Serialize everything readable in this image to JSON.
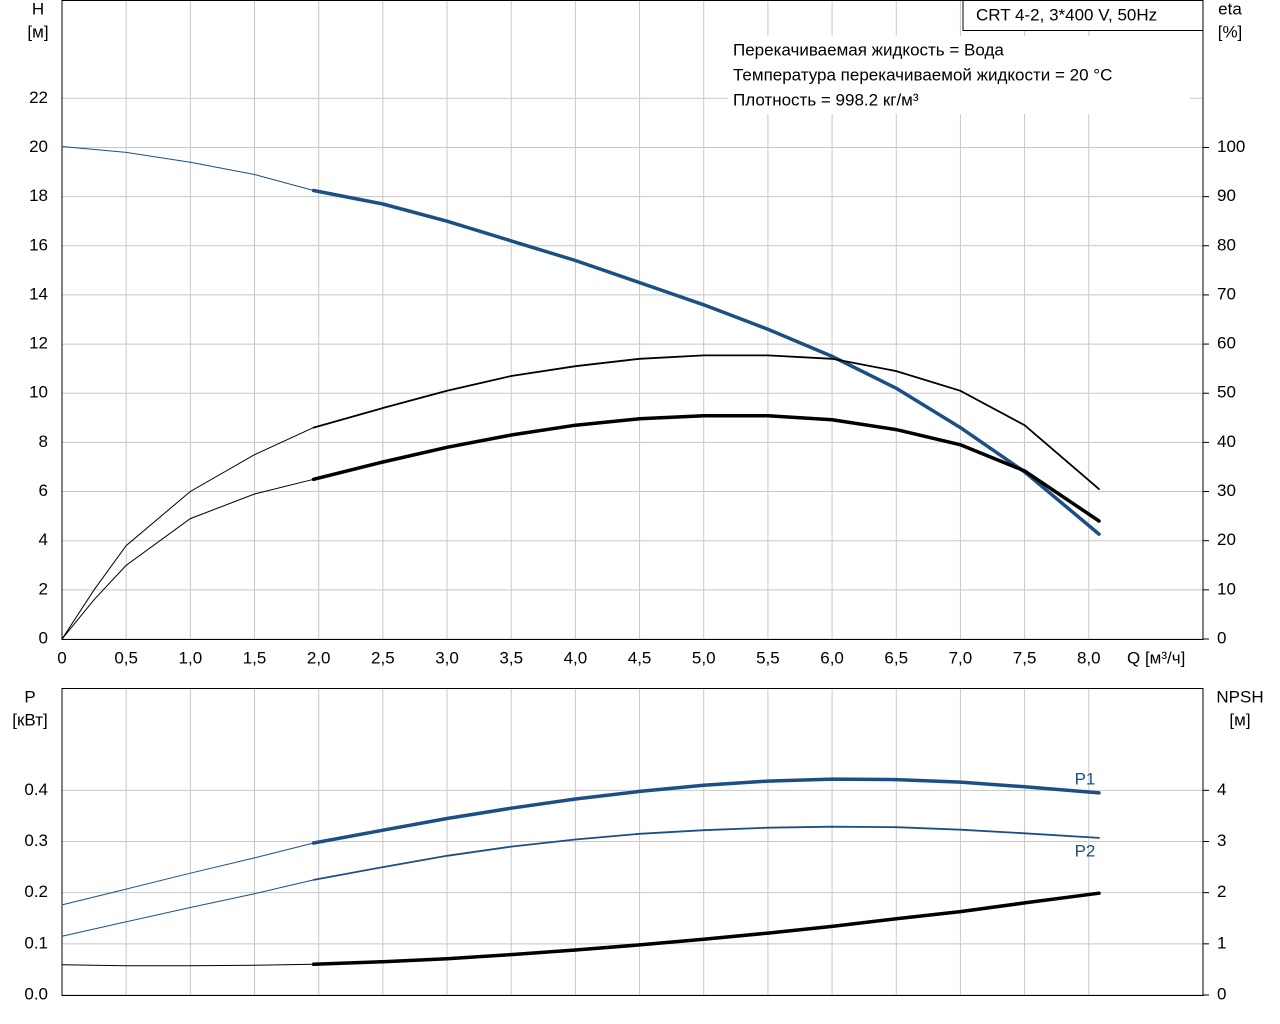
{
  "chart_data": [
    {
      "type": "line",
      "title": "CRT 4-2, 3*400 V, 50Hz",
      "info": [
        "Перекачиваемая жидкость = Вода",
        "Температура перекачиваемой жидкости = 20 °C",
        "Плотность = 998.2 кг/м³"
      ],
      "y_label": "H",
      "y_unit": "[м]",
      "y2_label": "eta",
      "y2_unit": "[%]",
      "x_label": "Q [м³/ч]",
      "grid": true,
      "xlim": [
        0,
        8.89
      ],
      "xticks": [
        0,
        {
          "value": 0.5,
          "label": "0,5"
        },
        {
          "value": 1,
          "label": "1,0"
        },
        {
          "value": 1.5,
          "label": "1,5"
        },
        {
          "value": 2,
          "label": "2,0"
        },
        {
          "value": 2.5,
          "label": "2,5"
        },
        {
          "value": 3,
          "label": "3,0"
        },
        {
          "value": 3.5,
          "label": "3,5"
        },
        {
          "value": 4,
          "label": "4,0"
        },
        {
          "value": 4.5,
          "label": "4,5"
        },
        {
          "value": 5,
          "label": "5,0"
        },
        {
          "value": 5.5,
          "label": "5,5"
        },
        {
          "value": 6,
          "label": "6,0"
        },
        {
          "value": 6.5,
          "label": "6,5"
        },
        {
          "value": 7,
          "label": "7,0"
        },
        {
          "value": 7.5,
          "label": "7,5"
        },
        {
          "value": 8,
          "label": "8,0"
        }
      ],
      "ylim": [
        0,
        26
      ],
      "yticks": [
        0,
        2,
        4,
        6,
        8,
        10,
        12,
        14,
        16,
        18,
        20,
        22
      ],
      "y2lim": [
        0,
        130
      ],
      "y2ticks": [
        0,
        10,
        20,
        30,
        40,
        50,
        60,
        70,
        80,
        90,
        100
      ],
      "series": [
        {
          "color": "#1c5085",
          "line_width": 1,
          "x": [
            0,
            0.5,
            1,
            1.5,
            1.96
          ],
          "values": [
            20.04,
            19.8,
            19.4,
            18.9,
            18.25
          ]
        },
        {
          "color": "#1c5085",
          "line_width": 3.5,
          "x": [
            1.96,
            2.5,
            3,
            3.5,
            4,
            4.5,
            5,
            5.5,
            6,
            6.5,
            7,
            7.5,
            8.08
          ],
          "values": [
            18.25,
            17.7,
            17.0,
            16.2,
            15.4,
            14.5,
            13.6,
            12.6,
            11.5,
            10.2,
            8.6,
            6.8,
            4.27
          ]
        },
        {
          "color": "#000000",
          "line_width": 1,
          "axis": "y2",
          "x": [
            0,
            0.25,
            0.5,
            1,
            1.5,
            1.96
          ],
          "values": [
            0,
            10,
            19,
            30,
            37.5,
            43
          ]
        },
        {
          "color": "#000000",
          "line_width": 1.8,
          "axis": "y2",
          "x": [
            1.96,
            2.5,
            3,
            3.5,
            4,
            4.5,
            5,
            5.5,
            6,
            6.5,
            7,
            7.5,
            8.08
          ],
          "values": [
            43,
            47,
            50.5,
            53.5,
            55.5,
            57,
            57.7,
            57.7,
            57,
            54.5,
            50.5,
            43.5,
            30.5
          ]
        },
        {
          "color": "#000000",
          "line_width": 1,
          "axis": "y2",
          "x": [
            0,
            0.25,
            0.5,
            1,
            1.5,
            1.96
          ],
          "values": [
            0,
            8,
            15,
            24.5,
            29.5,
            32.5
          ]
        },
        {
          "color": "#000000",
          "line_width": 3.5,
          "axis": "y2",
          "x": [
            1.96,
            2.5,
            3,
            3.5,
            4,
            4.5,
            5,
            5.5,
            6,
            6.5,
            7,
            7.5,
            8.08
          ],
          "values": [
            32.5,
            36,
            39,
            41.5,
            43.5,
            44.8,
            45.4,
            45.4,
            44.6,
            42.6,
            39.5,
            34.2,
            24
          ]
        }
      ]
    },
    {
      "type": "line",
      "y_label": "P",
      "y_unit": "[кВт]",
      "y2_label": "NPSH",
      "y2_unit": "[м]",
      "grid": true,
      "xlim": [
        0,
        8.89
      ],
      "ylim": [
        0,
        0.6
      ],
      "yticks": [
        {
          "value": 0,
          "label": "0.0"
        },
        0.1,
        0.2,
        0.3,
        0.4
      ],
      "y2lim": [
        0,
        6
      ],
      "y2ticks": [
        0,
        1,
        2,
        3,
        4
      ],
      "annotations": [
        "P1",
        "P2"
      ],
      "series": [
        {
          "color": "#1c5085",
          "line_width": 1,
          "x": [
            0,
            0.5,
            1,
            1.5,
            1.96
          ],
          "values": [
            0.176,
            0.207,
            0.238,
            0.268,
            0.297
          ]
        },
        {
          "color": "#1c5085",
          "line_width": 3.5,
          "x": [
            1.96,
            2.5,
            3,
            3.5,
            4,
            4.5,
            5,
            5.5,
            6,
            6.5,
            7,
            7.5,
            8.08
          ],
          "values": [
            0.297,
            0.322,
            0.345,
            0.365,
            0.383,
            0.398,
            0.41,
            0.418,
            0.422,
            0.421,
            0.416,
            0.407,
            0.395
          ]
        },
        {
          "color": "#1c5085",
          "line_width": 1,
          "x": [
            0,
            0.5,
            1,
            1.5,
            1.96
          ],
          "values": [
            0.115,
            0.143,
            0.171,
            0.198,
            0.225
          ]
        },
        {
          "color": "#1c5085",
          "line_width": 1.8,
          "x": [
            1.96,
            2.5,
            3,
            3.5,
            4,
            4.5,
            5,
            5.5,
            6,
            6.5,
            7,
            7.5,
            8.08
          ],
          "values": [
            0.225,
            0.25,
            0.272,
            0.29,
            0.304,
            0.315,
            0.322,
            0.327,
            0.329,
            0.328,
            0.323,
            0.316,
            0.307
          ]
        },
        {
          "color": "#000000",
          "line_width": 1,
          "axis": "y2",
          "x": [
            0,
            0.5,
            1,
            1.5,
            1.96
          ],
          "values": [
            0.59,
            0.57,
            0.57,
            0.58,
            0.6
          ]
        },
        {
          "color": "#000000",
          "line_width": 3.5,
          "axis": "y2",
          "x": [
            1.96,
            2.5,
            3,
            3.5,
            4,
            4.5,
            5,
            5.5,
            6,
            6.5,
            7,
            7.5,
            8.08
          ],
          "values": [
            0.6,
            0.65,
            0.71,
            0.79,
            0.88,
            0.98,
            1.09,
            1.21,
            1.34,
            1.49,
            1.63,
            1.8,
            1.99
          ]
        }
      ]
    }
  ]
}
